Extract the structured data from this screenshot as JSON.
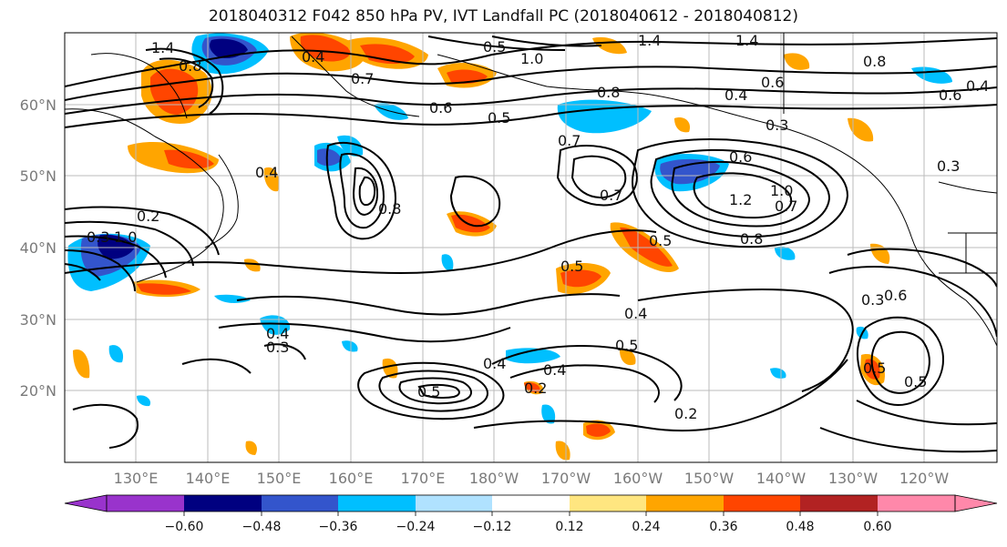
{
  "title": "2018040312 F042 850 hPa PV, IVT Landfall PC (2018040612 - 2018040812)",
  "lat_labels": [
    "60°N",
    "50°N",
    "40°N",
    "30°N",
    "20°N"
  ],
  "lon_labels": [
    "130°E",
    "140°E",
    "150°E",
    "160°E",
    "170°E",
    "180°W",
    "170°W",
    "160°W",
    "150°W",
    "140°W",
    "130°W",
    "120°W"
  ],
  "colorbar": {
    "tick_labels": [
      "−0.60",
      "−0.48",
      "−0.36",
      "−0.24",
      "−0.12",
      "0.12",
      "0.24",
      "0.36",
      "0.48",
      "0.60"
    ],
    "colors": [
      "#9933cc",
      "#000080",
      "#3355cc",
      "#00bfff",
      "#b0e2ff",
      "#ffffff",
      "#ffe680",
      "#ffa500",
      "#ff4500",
      "#b22222",
      "#ff88aa"
    ]
  },
  "contour_labels": [
    "1.4",
    "0.8",
    "0.4",
    "0.5",
    "0.7",
    "1.0",
    "1.4",
    "1.4",
    "0.8",
    "0.6",
    "0.8",
    "0.6",
    "0.4",
    "0.3",
    "0.4",
    "0.7",
    "0.6",
    "0.5",
    "0.4",
    "0.3",
    "0.7",
    "0.6",
    "1.2",
    "1.0",
    "0.7",
    "0.8",
    "0.5",
    "0.2",
    "0.3",
    "1.0",
    "0.8",
    "0.5",
    "0.4",
    "0.5",
    "0.4",
    "0.3",
    "0.4",
    "0.5",
    "0.2",
    "0.4",
    "0.2",
    "0.5",
    "0.3",
    "0.5",
    "0.6"
  ]
}
